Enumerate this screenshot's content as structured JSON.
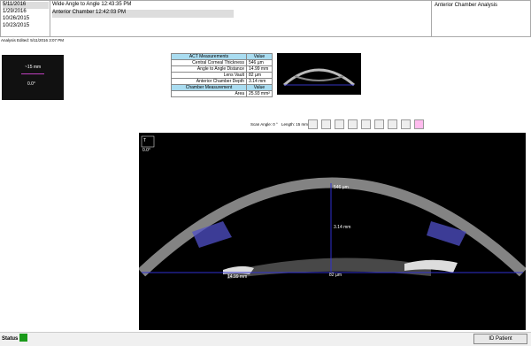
{
  "dates": [
    "5/11/2016",
    "1/29/2016",
    "10/26/2015",
    "10/23/2015"
  ],
  "scans": [
    "Wide Angle to Angle 12:43:35 PM",
    "Anterior Chamber 12:42:03 PM"
  ],
  "analysis_title": "Anterior Chamber Analysis",
  "analysis_edited": "Analysis Edited: 5/11/2016 3:07 PM",
  "thumbnail": {
    "length": "~15 mm",
    "angle": "0.0°"
  },
  "table": {
    "header": [
      "ACT Measurements",
      "Value"
    ],
    "rows": [
      [
        "Central Corneal Thickness",
        "546 µm"
      ],
      [
        "Angle to Angle Distance",
        "14.99 mm"
      ],
      [
        "Lens Vault",
        "82 µm"
      ],
      [
        "Anterior Chamber Depth",
        "3.14 mm"
      ]
    ],
    "header2": [
      "Chamber Measurement",
      "Value"
    ],
    "rows2": [
      [
        "Area",
        "25.93 mm²"
      ]
    ]
  },
  "scan_angle": "Scan Angle: 0 °",
  "scan_length": "Length: 15 mm",
  "image": {
    "orientation": "T",
    "angle": "0.0°",
    "cct": "546 µm",
    "acd": "3.14 mm",
    "ata": "14.99 mm",
    "lv": "82 µm"
  },
  "status": "Status",
  "button": "ID Patient"
}
